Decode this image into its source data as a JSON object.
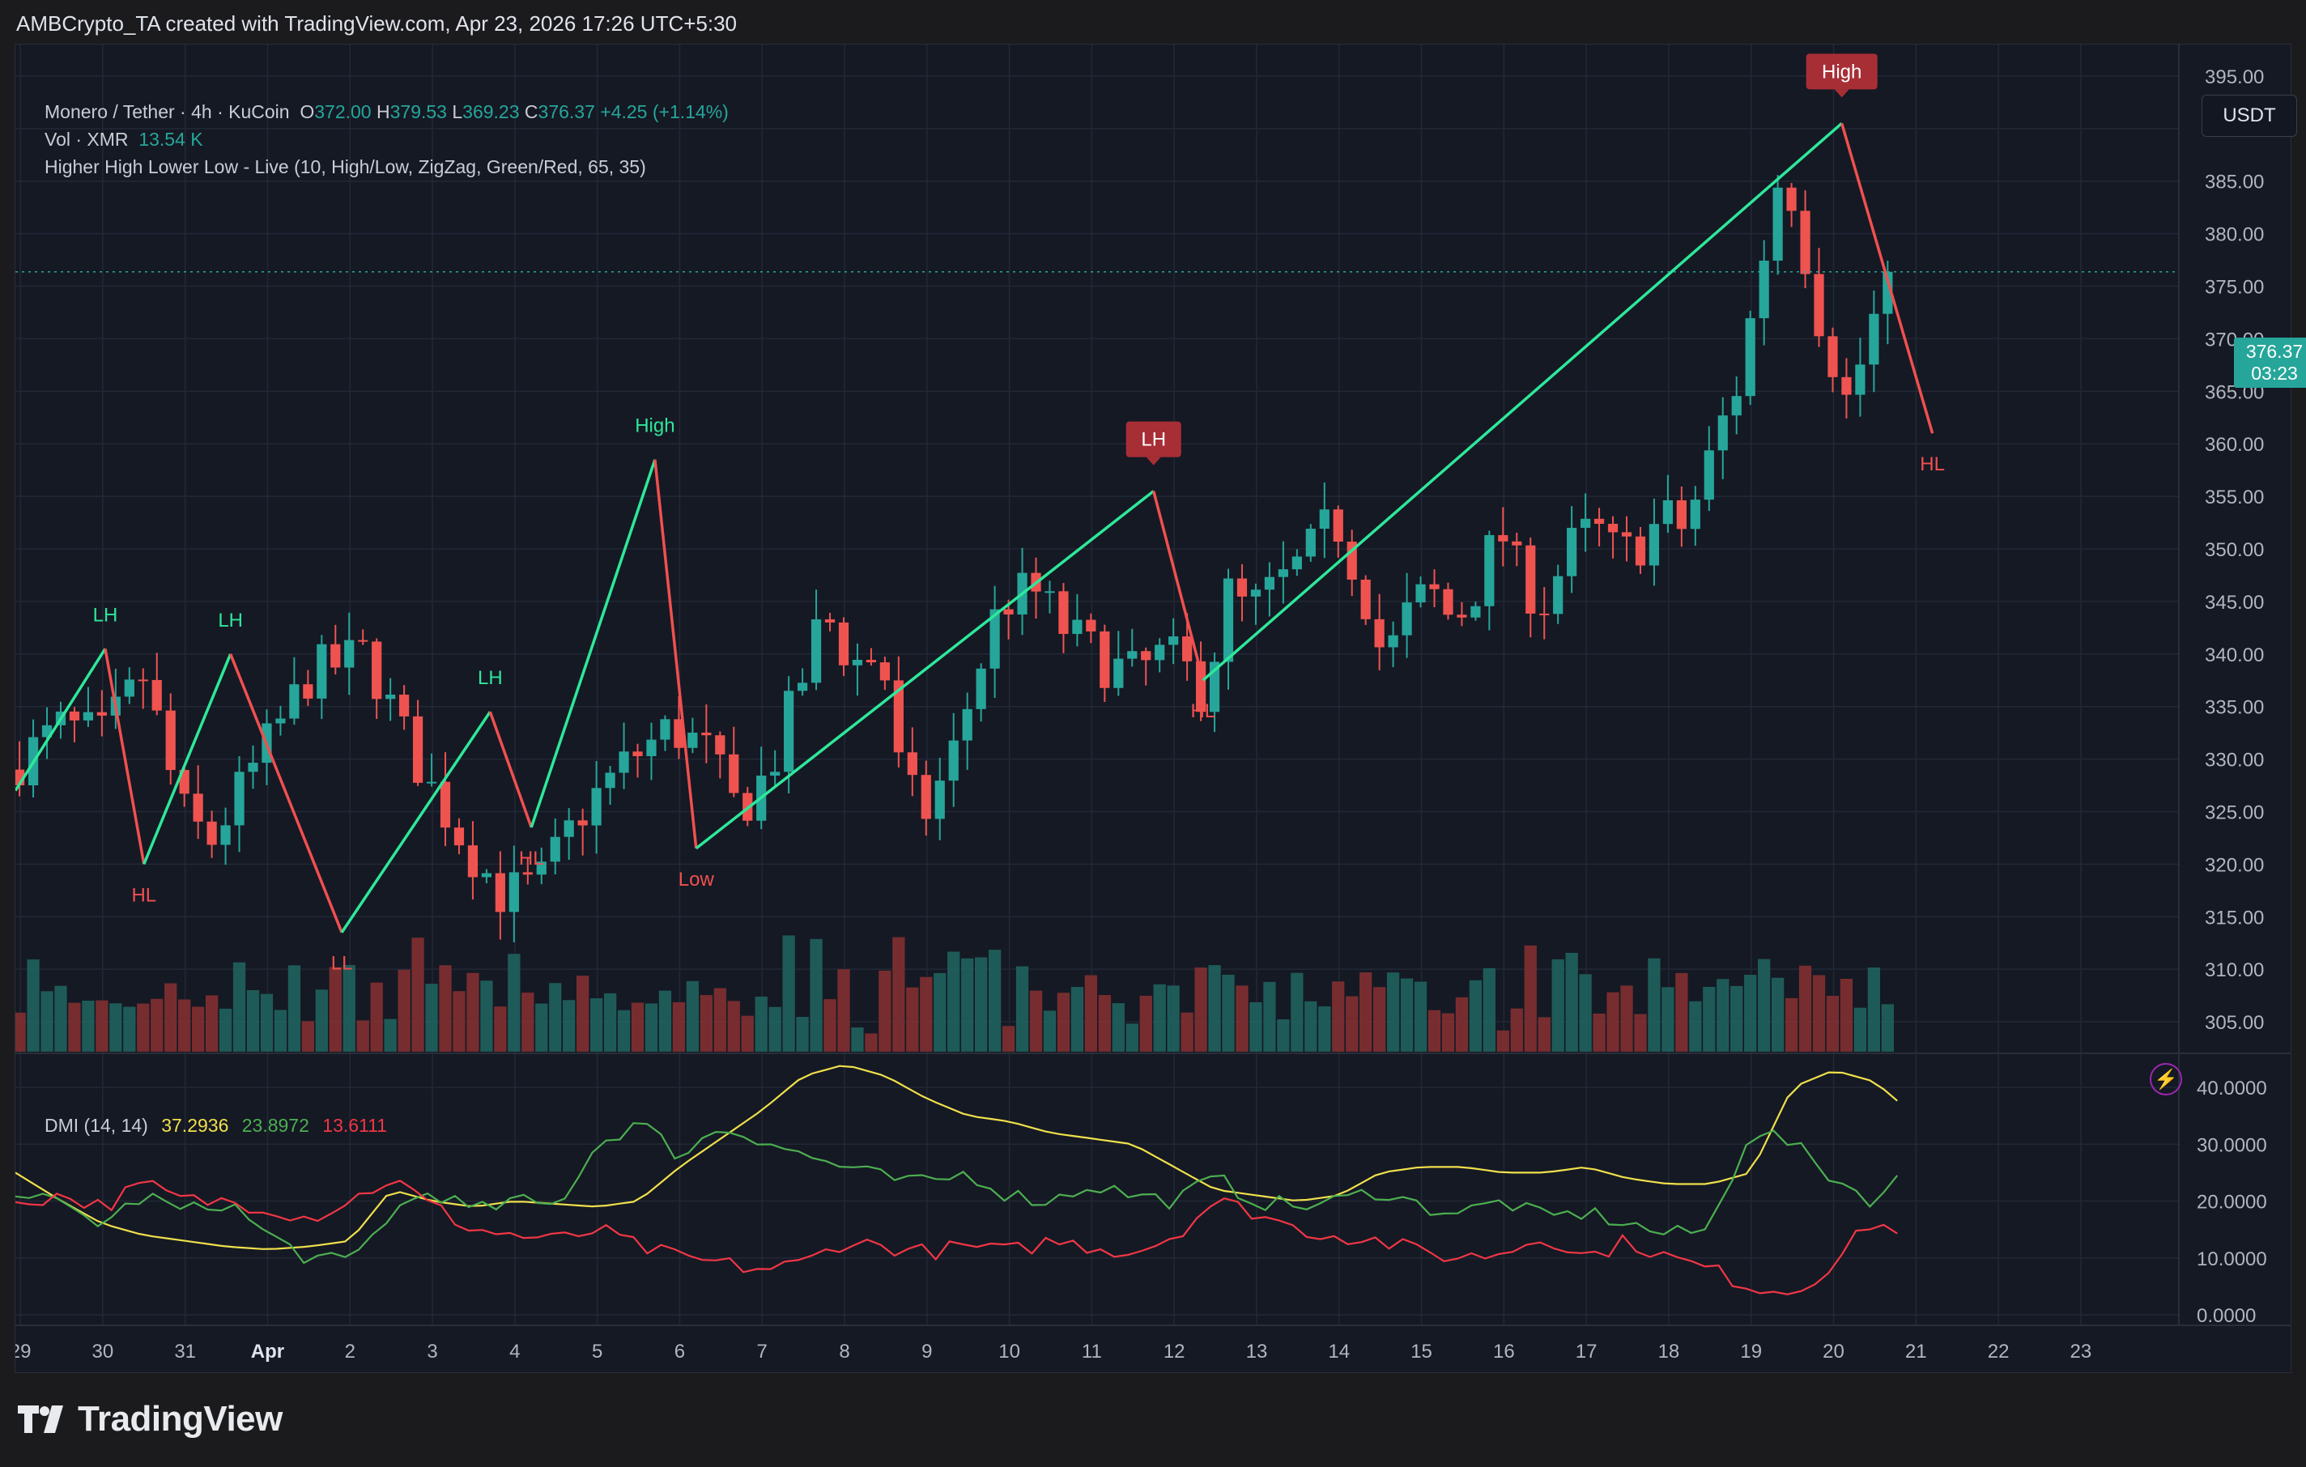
{
  "header": {
    "credit": "AMBCrypto_TA created with TradingView.com, Apr 23, 2026 17:26 UTC+5:30"
  },
  "legend": {
    "symbol": "Monero / Tether · 4h · KuCoin",
    "o_label": "O",
    "o_value": "372.00",
    "h_label": "H",
    "h_value": "379.53",
    "l_label": "L",
    "l_value": "369.23",
    "c_label": "C",
    "c_value": "376.37",
    "change": "+4.25 (+1.14%)",
    "vol_label": "Vol · XMR",
    "vol_value": "13.54 K",
    "indicator": "Higher High Lower Low - Live (10, High/Low, ZigZag, Green/Red, 65, 35)"
  },
  "dmi_legend": {
    "label": "DMI (14, 14)",
    "adx": "37.2936",
    "plus_di": "23.8972",
    "minus_di": "13.6111"
  },
  "currency": "USDT",
  "last_price": {
    "price": "376.37",
    "countdown": "03:23"
  },
  "brand": "TradingView",
  "colors": {
    "up": "#26a69a",
    "down": "#ef5350",
    "zigzag_up": "#2ee89a",
    "zigzag_down": "#f0504f",
    "adx": "#f0e04c",
    "plus_di": "#4caf50",
    "minus_di": "#f23645",
    "background": "#151924"
  },
  "chart_data": [
    {
      "type": "candlestick",
      "title": "Monero / Tether · 4h · KuCoin",
      "y_axis": {
        "range": [
          302,
          398
        ],
        "ticks": [
          305,
          310,
          315,
          320,
          325,
          330,
          335,
          340,
          345,
          350,
          355,
          360,
          365,
          370,
          375,
          380,
          385,
          390,
          395
        ],
        "tick_labels": [
          "305.00",
          "310.00",
          "315.00",
          "320.00",
          "325.00",
          "330.00",
          "335.00",
          "340.00",
          "345.00",
          "350.00",
          "355.00",
          "360.00",
          "365.00",
          "370.00",
          "375.00",
          "380.00",
          "385.00",
          "390.00",
          "395.00"
        ]
      },
      "x_axis": {
        "days_visible": 26.25,
        "first_day_fraction": -0.06,
        "tick_labels": [
          "29",
          "30",
          "31",
          "Apr",
          "2",
          "3",
          "4",
          "5",
          "6",
          "7",
          "8",
          "9",
          "10",
          "11",
          "12",
          "13",
          "14",
          "15",
          "16",
          "17",
          "18",
          "19",
          "20",
          "21",
          "22",
          "23"
        ]
      },
      "close_anchors_by_day": [
        [
          0,
          330
        ],
        [
          0.5,
          333
        ],
        [
          1.0,
          332
        ],
        [
          1.5,
          338
        ],
        [
          1.95,
          325
        ],
        [
          2.3,
          322
        ],
        [
          2.9,
          330
        ],
        [
          3.5,
          338
        ],
        [
          4.2,
          340
        ],
        [
          4.6,
          333
        ],
        [
          5.0,
          327
        ],
        [
          5.4,
          322
        ],
        [
          5.85,
          317
        ],
        [
          6.3,
          318
        ],
        [
          6.8,
          325
        ],
        [
          7.4,
          330
        ],
        [
          7.9,
          333
        ],
        [
          8.3,
          331
        ],
        [
          8.7,
          325
        ],
        [
          9.1,
          329
        ],
        [
          9.5,
          338
        ],
        [
          9.75,
          344
        ],
        [
          10.1,
          339
        ],
        [
          10.45,
          340
        ],
        [
          10.7,
          327
        ],
        [
          11.0,
          325
        ],
        [
          11.3,
          330
        ],
        [
          11.6,
          338
        ],
        [
          11.9,
          345
        ],
        [
          12.3,
          346
        ],
        [
          12.7,
          342
        ],
        [
          13.2,
          339
        ],
        [
          13.5,
          338
        ],
        [
          13.9,
          340
        ],
        [
          14.2,
          338
        ],
        [
          14.4,
          336
        ],
        [
          14.6,
          346
        ],
        [
          14.9,
          344
        ],
        [
          15.2,
          346
        ],
        [
          15.6,
          349
        ],
        [
          15.95,
          353
        ],
        [
          16.15,
          349
        ],
        [
          16.35,
          345
        ],
        [
          16.55,
          339
        ],
        [
          16.85,
          344
        ],
        [
          17.1,
          346
        ],
        [
          17.4,
          343
        ],
        [
          17.7,
          347
        ],
        [
          17.95,
          352
        ],
        [
          18.2,
          347
        ],
        [
          18.5,
          345
        ],
        [
          18.8,
          350
        ],
        [
          19.1,
          352
        ],
        [
          19.4,
          349
        ],
        [
          19.7,
          351
        ],
        [
          19.95,
          353
        ],
        [
          20.15,
          352
        ],
        [
          20.35,
          355
        ],
        [
          20.6,
          361
        ],
        [
          20.85,
          366
        ],
        [
          21.0,
          372
        ],
        [
          21.15,
          378
        ],
        [
          21.35,
          386
        ],
        [
          21.55,
          383
        ],
        [
          21.75,
          374
        ],
        [
          22.0,
          368
        ],
        [
          22.15,
          364
        ],
        [
          22.3,
          367
        ],
        [
          22.5,
          372
        ],
        [
          22.7,
          376.37
        ]
      ],
      "zigzag_pivots": [
        {
          "day": -0.06,
          "price": 327
        },
        {
          "day": 1.03,
          "price": 340.5,
          "label": "LH"
        },
        {
          "day": 1.5,
          "price": 320,
          "label": "HL"
        },
        {
          "day": 2.55,
          "price": 340,
          "label": "LH"
        },
        {
          "day": 3.9,
          "price": 313.5,
          "label": "LL"
        },
        {
          "day": 5.7,
          "price": 334.5,
          "label": "LH"
        },
        {
          "day": 6.2,
          "price": 323.5,
          "label": "HL"
        },
        {
          "day": 7.7,
          "price": 358.5,
          "label": "High"
        },
        {
          "day": 8.2,
          "price": 321.5,
          "label": "Low"
        },
        {
          "day": 13.75,
          "price": 355.5,
          "label": "LH"
        },
        {
          "day": 14.35,
          "price": 337.5,
          "label": "HL"
        },
        {
          "day": 22.1,
          "price": 390.5,
          "label": "High"
        },
        {
          "day": 23.2,
          "price": 361,
          "label": "HL"
        }
      ]
    },
    {
      "type": "bar",
      "title": "Vol · XMR",
      "last_value": "13.54 K"
    },
    {
      "type": "line",
      "title": "DMI (14, 14)",
      "y_axis": {
        "range": [
          -1,
          44
        ],
        "ticks": [
          0,
          10,
          20,
          30,
          40
        ],
        "tick_labels": [
          "0.0000",
          "10.0000",
          "20.0000",
          "30.0000",
          "40.0000"
        ]
      },
      "series": [
        {
          "name": "ADX",
          "color": "#f0e04c",
          "anchors": [
            [
              -0.06,
              25
            ],
            [
              0.5,
              20
            ],
            [
              1.0,
              16
            ],
            [
              1.5,
              14
            ],
            [
              2.0,
              13
            ],
            [
              2.5,
              12
            ],
            [
              3.0,
              11.5
            ],
            [
              3.5,
              12
            ],
            [
              4.0,
              13
            ],
            [
              4.5,
              22
            ],
            [
              5.0,
              20
            ],
            [
              5.5,
              19
            ],
            [
              6.0,
              20
            ],
            [
              6.5,
              19.5
            ],
            [
              7.0,
              19
            ],
            [
              7.5,
              20
            ],
            [
              8.0,
              26
            ],
            [
              8.5,
              31
            ],
            [
              9.0,
              36
            ],
            [
              9.5,
              42
            ],
            [
              10.0,
              44
            ],
            [
              10.5,
              42
            ],
            [
              11.0,
              38
            ],
            [
              11.5,
              35
            ],
            [
              12.0,
              34
            ],
            [
              12.5,
              32
            ],
            [
              13.0,
              31
            ],
            [
              13.5,
              30
            ],
            [
              14.0,
              26
            ],
            [
              14.5,
              22
            ],
            [
              15.0,
              21
            ],
            [
              15.5,
              20
            ],
            [
              16.0,
              21
            ],
            [
              16.5,
              25
            ],
            [
              17.0,
              26
            ],
            [
              17.5,
              26
            ],
            [
              18.0,
              25
            ],
            [
              18.5,
              25
            ],
            [
              19.0,
              26
            ],
            [
              19.5,
              24
            ],
            [
              20.0,
              23
            ],
            [
              20.5,
              23
            ],
            [
              21.0,
              25
            ],
            [
              21.5,
              40
            ],
            [
              22.0,
              43
            ],
            [
              22.5,
              41
            ],
            [
              22.8,
              37.3
            ]
          ]
        },
        {
          "name": "+DI",
          "color": "#4caf50",
          "anchors": [
            [
              -0.06,
              22
            ],
            [
              0.5,
              19
            ],
            [
              1.0,
              16
            ],
            [
              1.5,
              21
            ],
            [
              2.0,
              18
            ],
            [
              2.5,
              20
            ],
            [
              3.0,
              14
            ],
            [
              3.5,
              10
            ],
            [
              4.0,
              9
            ],
            [
              4.5,
              18
            ],
            [
              5.0,
              22
            ],
            [
              5.5,
              18
            ],
            [
              6.0,
              20
            ],
            [
              6.5,
              19
            ],
            [
              7.0,
              30
            ],
            [
              7.5,
              34
            ],
            [
              8.0,
              28
            ],
            [
              8.5,
              33
            ],
            [
              9.0,
              31
            ],
            [
              9.5,
              28
            ],
            [
              10.0,
              26
            ],
            [
              10.5,
              24
            ],
            [
              11.0,
              23
            ],
            [
              11.5,
              25
            ],
            [
              12.0,
              21
            ],
            [
              12.5,
              20
            ],
            [
              13.0,
              23
            ],
            [
              13.5,
              21
            ],
            [
              14.0,
              20
            ],
            [
              14.5,
              24
            ],
            [
              15.0,
              20
            ],
            [
              15.5,
              19
            ],
            [
              16.0,
              20
            ],
            [
              16.5,
              22
            ],
            [
              17.0,
              19
            ],
            [
              17.5,
              18
            ],
            [
              18.0,
              20
            ],
            [
              18.5,
              17
            ],
            [
              19.0,
              18
            ],
            [
              19.5,
              16
            ],
            [
              20.0,
              14
            ],
            [
              20.5,
              15
            ],
            [
              21.0,
              33
            ],
            [
              21.5,
              30
            ],
            [
              22.0,
              24
            ],
            [
              22.5,
              20
            ],
            [
              22.8,
              23.9
            ]
          ]
        },
        {
          "name": "-DI",
          "color": "#f23645",
          "anchors": [
            [
              -0.06,
              20
            ],
            [
              0.5,
              21
            ],
            [
              1.0,
              19
            ],
            [
              1.5,
              23
            ],
            [
              2.0,
              20
            ],
            [
              2.5,
              20
            ],
            [
              3.0,
              19
            ],
            [
              3.5,
              17
            ],
            [
              4.0,
              20
            ],
            [
              4.5,
              24
            ],
            [
              5.0,
              19
            ],
            [
              5.5,
              15
            ],
            [
              6.0,
              14
            ],
            [
              6.5,
              13
            ],
            [
              7.0,
              15
            ],
            [
              7.5,
              12
            ],
            [
              8.0,
              10
            ],
            [
              8.5,
              9
            ],
            [
              9.0,
              8
            ],
            [
              9.5,
              9
            ],
            [
              10.0,
              13
            ],
            [
              10.5,
              12
            ],
            [
              11.0,
              11
            ],
            [
              11.5,
              12
            ],
            [
              12.0,
              11
            ],
            [
              12.5,
              13
            ],
            [
              13.0,
              12
            ],
            [
              13.5,
              11
            ],
            [
              14.0,
              14
            ],
            [
              14.5,
              20
            ],
            [
              15.0,
              18
            ],
            [
              15.5,
              15
            ],
            [
              16.0,
              14
            ],
            [
              16.5,
              13
            ],
            [
              17.0,
              11
            ],
            [
              17.5,
              10
            ],
            [
              18.0,
              11
            ],
            [
              18.5,
              14
            ],
            [
              19.0,
              10
            ],
            [
              19.5,
              13
            ],
            [
              20.0,
              10
            ],
            [
              20.5,
              8
            ],
            [
              21.0,
              5
            ],
            [
              21.5,
              4
            ],
            [
              22.0,
              9
            ],
            [
              22.5,
              17
            ],
            [
              22.8,
              13.6
            ]
          ]
        }
      ]
    }
  ]
}
